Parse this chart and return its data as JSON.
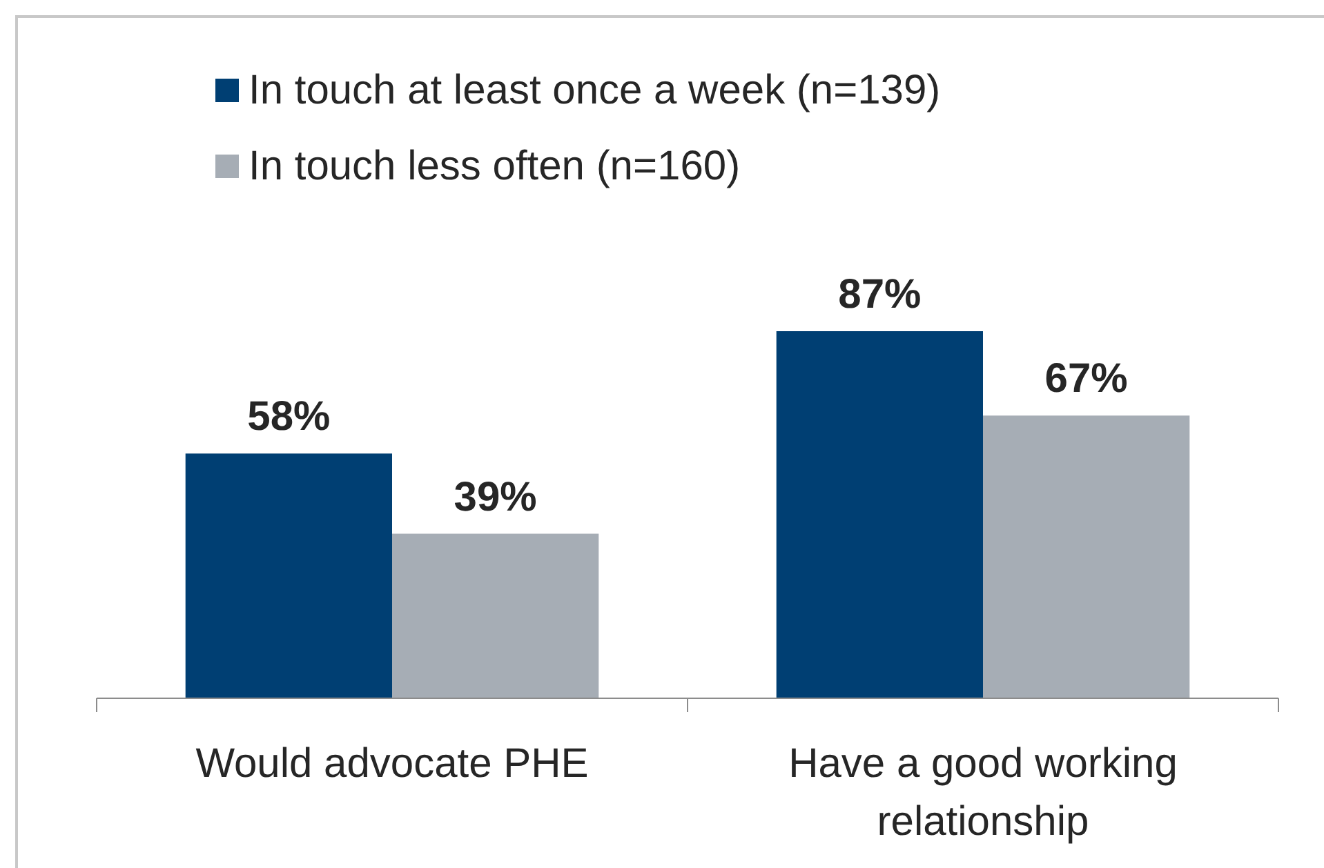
{
  "chart_data": {
    "type": "bar",
    "categories": [
      "Would advocate PHE",
      "Have a good working relationship"
    ],
    "series": [
      {
        "name": "In touch at least once a week (n=139)",
        "color": "#003f73",
        "values": [
          58,
          87
        ],
        "value_labels": [
          "58%",
          "87%"
        ]
      },
      {
        "name": "In touch less often (n=160)",
        "color": "#a6adb5",
        "values": [
          39,
          67
        ],
        "value_labels": [
          "39%",
          "67%"
        ]
      }
    ],
    "legend": "top left"
  }
}
